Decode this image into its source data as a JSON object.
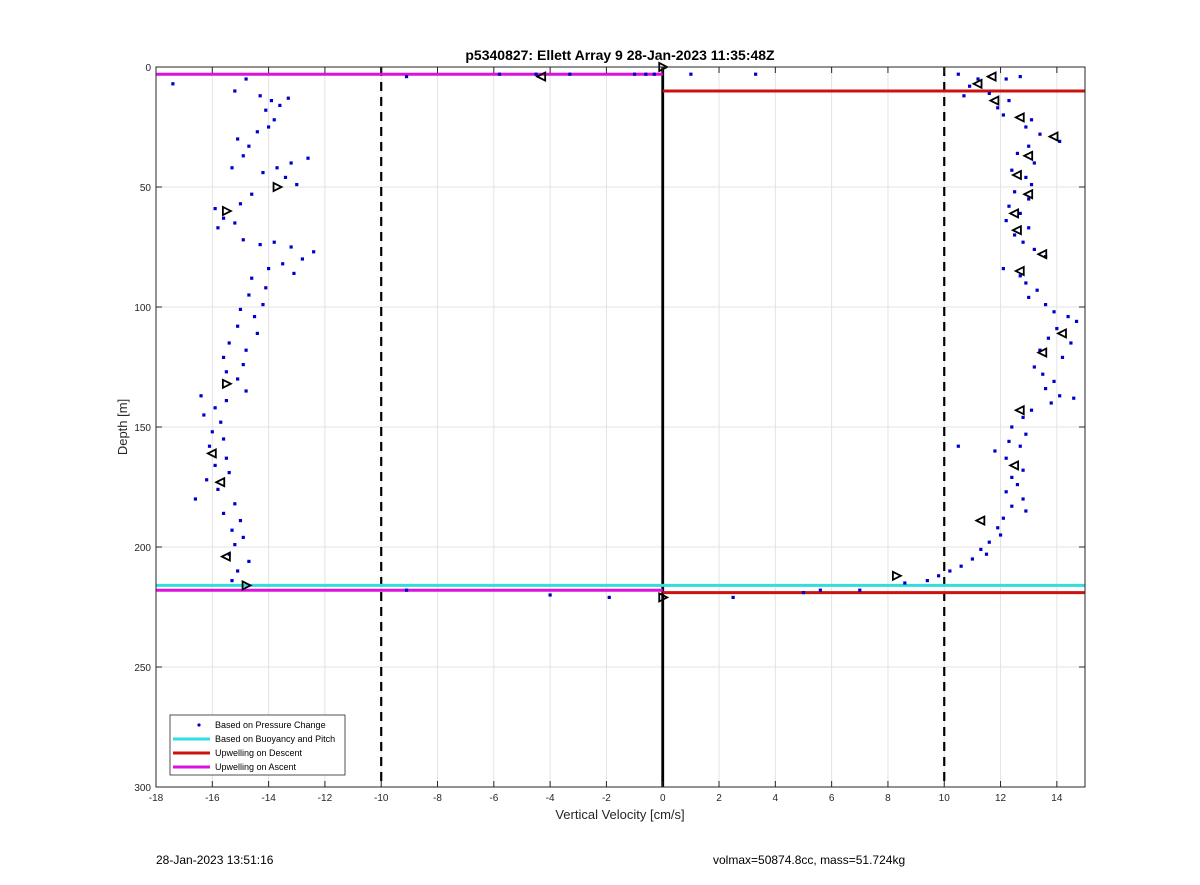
{
  "chart_data": {
    "type": "scatter",
    "title": "p5340827: Ellett Array 9 28-Jan-2023 11:35:48Z",
    "xlabel": "Vertical Velocity [cm/s]",
    "ylabel": "Depth [m]",
    "xlim": [
      -18,
      15
    ],
    "ylim": [
      0,
      300
    ],
    "y_reversed": true,
    "grid": true,
    "x_ticks": [
      -18,
      -16,
      -14,
      -12,
      -10,
      -8,
      -6,
      -4,
      -2,
      0,
      2,
      4,
      6,
      8,
      10,
      12,
      14
    ],
    "y_ticks": [
      0,
      50,
      100,
      150,
      200,
      250,
      300
    ],
    "legend_position": "bottom-left",
    "legend": [
      {
        "label": "Based on Pressure Change",
        "color": "#0000cc",
        "kind": "dot"
      },
      {
        "label": "Based on Buoyancy and Pitch",
        "color": "#33dddd",
        "kind": "line"
      },
      {
        "label": "Upwelling on Descent",
        "color": "#cc1111",
        "kind": "line"
      },
      {
        "label": "Upwelling on Ascent",
        "color": "#dd11dd",
        "kind": "line"
      }
    ],
    "reference_lines": {
      "dashed_x": [
        -10,
        10
      ],
      "solid_x": [
        0
      ]
    },
    "horizontal_lines": [
      {
        "series": "Upwelling on Ascent",
        "y": 3,
        "x": [
          -18,
          0
        ],
        "color": "#dd11dd"
      },
      {
        "series": "Upwelling on Descent",
        "y": 10,
        "x": [
          0,
          15
        ],
        "color": "#cc1111"
      },
      {
        "series": "Based on Buoyancy and Pitch",
        "y": 216,
        "x": [
          -18,
          15
        ],
        "color": "#33dddd"
      },
      {
        "series": "Upwelling on Ascent",
        "y": 218,
        "x": [
          -18,
          0
        ],
        "color": "#dd11dd"
      },
      {
        "series": "Upwelling on Descent",
        "y": 219,
        "x": [
          0,
          15
        ],
        "color": "#cc1111"
      }
    ],
    "series": [
      {
        "name": "Based on Pressure Change",
        "color": "#0000cc",
        "points": [
          [
            -17.4,
            7
          ],
          [
            -15.2,
            10
          ],
          [
            -14.8,
            5
          ],
          [
            -14.3,
            12
          ],
          [
            -13.9,
            14
          ],
          [
            -13.6,
            16
          ],
          [
            -13.3,
            13
          ],
          [
            -14.1,
            18
          ],
          [
            -13.8,
            22
          ],
          [
            -14.0,
            25
          ],
          [
            -14.4,
            27
          ],
          [
            -15.1,
            30
          ],
          [
            -14.7,
            33
          ],
          [
            -14.9,
            37
          ],
          [
            -15.3,
            42
          ],
          [
            -14.2,
            44
          ],
          [
            -13.7,
            42
          ],
          [
            -13.2,
            40
          ],
          [
            -12.6,
            38
          ],
          [
            -13.4,
            46
          ],
          [
            -13.0,
            49
          ],
          [
            -14.6,
            53
          ],
          [
            -15.0,
            57
          ],
          [
            -15.9,
            59
          ],
          [
            -15.6,
            63
          ],
          [
            -15.2,
            65
          ],
          [
            -15.8,
            67
          ],
          [
            -14.9,
            72
          ],
          [
            -14.3,
            74
          ],
          [
            -13.8,
            73
          ],
          [
            -13.2,
            75
          ],
          [
            -12.4,
            77
          ],
          [
            -12.8,
            80
          ],
          [
            -13.5,
            82
          ],
          [
            -14.0,
            84
          ],
          [
            -13.1,
            86
          ],
          [
            -14.6,
            88
          ],
          [
            -14.1,
            92
          ],
          [
            -14.7,
            95
          ],
          [
            -14.2,
            99
          ],
          [
            -15.0,
            101
          ],
          [
            -14.5,
            104
          ],
          [
            -15.1,
            108
          ],
          [
            -14.4,
            111
          ],
          [
            -15.4,
            115
          ],
          [
            -14.8,
            118
          ],
          [
            -15.6,
            121
          ],
          [
            -14.9,
            124
          ],
          [
            -15.5,
            127
          ],
          [
            -15.1,
            130
          ],
          [
            -14.8,
            135
          ],
          [
            -16.4,
            137
          ],
          [
            -15.5,
            139
          ],
          [
            -15.9,
            142
          ],
          [
            -16.3,
            145
          ],
          [
            -15.7,
            148
          ],
          [
            -16.0,
            152
          ],
          [
            -15.6,
            155
          ],
          [
            -16.1,
            158
          ],
          [
            -15.5,
            163
          ],
          [
            -15.9,
            166
          ],
          [
            -15.4,
            169
          ],
          [
            -16.2,
            172
          ],
          [
            -15.8,
            176
          ],
          [
            -16.6,
            180
          ],
          [
            -15.2,
            182
          ],
          [
            -15.6,
            186
          ],
          [
            -15.0,
            189
          ],
          [
            -15.3,
            193
          ],
          [
            -14.9,
            196
          ],
          [
            -15.2,
            199
          ],
          [
            -15.4,
            203
          ],
          [
            -14.7,
            206
          ],
          [
            -15.1,
            210
          ],
          [
            -15.3,
            214
          ],
          [
            -9.1,
            4
          ],
          [
            -5.8,
            3
          ],
          [
            -3.3,
            3
          ],
          [
            -4.5,
            3
          ],
          [
            -1.0,
            3
          ],
          [
            -0.6,
            3
          ],
          [
            -0.3,
            3
          ],
          [
            1.0,
            3
          ],
          [
            3.3,
            3
          ],
          [
            10.5,
            3
          ],
          [
            11.2,
            5
          ],
          [
            12.2,
            5
          ],
          [
            12.7,
            4
          ],
          [
            10.9,
            8
          ],
          [
            11.6,
            11
          ],
          [
            10.7,
            12
          ],
          [
            12.3,
            14
          ],
          [
            11.9,
            17
          ],
          [
            12.1,
            20
          ],
          [
            13.1,
            22
          ],
          [
            12.9,
            25
          ],
          [
            13.4,
            28
          ],
          [
            14.1,
            31
          ],
          [
            13.0,
            33
          ],
          [
            12.6,
            36
          ],
          [
            13.2,
            40
          ],
          [
            12.4,
            43
          ],
          [
            12.9,
            46
          ],
          [
            13.1,
            49
          ],
          [
            12.5,
            52
          ],
          [
            13.0,
            55
          ],
          [
            12.3,
            58
          ],
          [
            12.7,
            61
          ],
          [
            12.2,
            64
          ],
          [
            13.0,
            67
          ],
          [
            12.5,
            70
          ],
          [
            12.8,
            73
          ],
          [
            13.2,
            76
          ],
          [
            13.6,
            79
          ],
          [
            12.1,
            84
          ],
          [
            12.7,
            87
          ],
          [
            12.9,
            90
          ],
          [
            13.3,
            93
          ],
          [
            13.0,
            96
          ],
          [
            13.6,
            99
          ],
          [
            13.9,
            102
          ],
          [
            14.4,
            104
          ],
          [
            14.7,
            106
          ],
          [
            14.0,
            109
          ],
          [
            13.7,
            113
          ],
          [
            14.5,
            115
          ],
          [
            13.4,
            118
          ],
          [
            14.2,
            121
          ],
          [
            13.2,
            125
          ],
          [
            13.5,
            128
          ],
          [
            13.9,
            131
          ],
          [
            13.6,
            134
          ],
          [
            14.1,
            137
          ],
          [
            13.8,
            140
          ],
          [
            14.6,
            138
          ],
          [
            13.1,
            143
          ],
          [
            12.8,
            146
          ],
          [
            12.4,
            150
          ],
          [
            12.9,
            153
          ],
          [
            12.3,
            156
          ],
          [
            12.7,
            158
          ],
          [
            11.8,
            160
          ],
          [
            10.5,
            158
          ],
          [
            12.2,
            163
          ],
          [
            12.8,
            168
          ],
          [
            12.4,
            171
          ],
          [
            12.6,
            174
          ],
          [
            12.2,
            177
          ],
          [
            12.8,
            180
          ],
          [
            12.4,
            183
          ],
          [
            12.9,
            185
          ],
          [
            12.1,
            188
          ],
          [
            11.9,
            192
          ],
          [
            12.0,
            195
          ],
          [
            11.6,
            198
          ],
          [
            11.3,
            201
          ],
          [
            11.5,
            203
          ],
          [
            11.0,
            205
          ],
          [
            10.6,
            208
          ],
          [
            10.2,
            210
          ],
          [
            9.8,
            212
          ],
          [
            9.4,
            214
          ],
          [
            8.6,
            215
          ],
          [
            7.0,
            218
          ],
          [
            5.6,
            218
          ],
          [
            5.0,
            219
          ],
          [
            2.5,
            221
          ],
          [
            -1.9,
            221
          ],
          [
            -4.0,
            220
          ],
          [
            -9.1,
            218
          ]
        ]
      }
    ],
    "triangle_markers": {
      "color": "#000000",
      "points": [
        [
          0.0,
          0,
          "right"
        ],
        [
          -4.3,
          4,
          "left"
        ],
        [
          11.7,
          4,
          "left"
        ],
        [
          11.2,
          7,
          "left"
        ],
        [
          11.8,
          14,
          "left"
        ],
        [
          12.7,
          21,
          "left"
        ],
        [
          13.9,
          29,
          "left"
        ],
        [
          13.0,
          37,
          "left"
        ],
        [
          12.6,
          45,
          "left"
        ],
        [
          13.0,
          53,
          "left"
        ],
        [
          12.5,
          61,
          "left"
        ],
        [
          12.6,
          68,
          "left"
        ],
        [
          13.5,
          78,
          "left"
        ],
        [
          12.7,
          85,
          "left"
        ],
        [
          14.2,
          111,
          "left"
        ],
        [
          13.5,
          119,
          "left"
        ],
        [
          12.7,
          143,
          "left"
        ],
        [
          12.5,
          166,
          "left"
        ],
        [
          11.3,
          189,
          "left"
        ],
        [
          -13.7,
          50,
          "right"
        ],
        [
          -15.5,
          60,
          "right"
        ],
        [
          -15.5,
          132,
          "right"
        ],
        [
          -16.0,
          161,
          "left"
        ],
        [
          -15.7,
          173,
          "left"
        ],
        [
          -15.5,
          204,
          "left"
        ],
        [
          -14.8,
          216,
          "right"
        ],
        [
          8.3,
          212,
          "right"
        ],
        [
          0.0,
          221,
          "right"
        ]
      ]
    },
    "annotations": [
      {
        "text": "28-Jan-2023 13:51:16",
        "position": "bottom-left"
      },
      {
        "text": "volmax=50874.8cc, mass=51.724kg",
        "position": "bottom-right"
      }
    ]
  }
}
